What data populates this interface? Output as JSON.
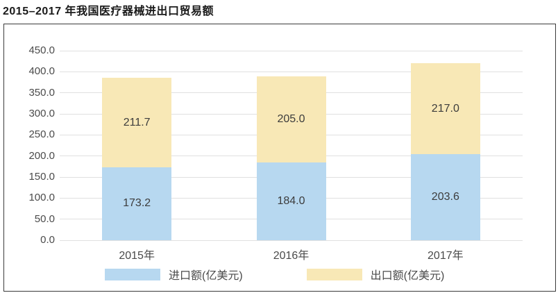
{
  "title": "2015–2017 年我国医疗器械进出口贸易额",
  "colors": {
    "import_fill": "#B7D8F0",
    "export_fill": "#F8E8B6",
    "gridline": "#E0E0E0",
    "axis_text": "#4A4A4A",
    "value_text": "#3C3C3C",
    "frame_border": "#3A3A3A",
    "background": "#FFFFFF"
  },
  "y_axis": {
    "tick_labels": [
      "450.0",
      "400.0",
      "350.0",
      "300.0",
      "250.0",
      "200.0",
      "150.0",
      "100.0",
      "50.0",
      "0.0"
    ]
  },
  "legend": {
    "items": [
      {
        "label": "进口额(亿美元)",
        "color": "#B7D8F0"
      },
      {
        "label": "出口额(亿美元)",
        "color": "#F8E8B6"
      }
    ]
  },
  "chart_data": {
    "type": "bar",
    "stacked": true,
    "title": "2015–2017 年我国医疗器械进出口贸易额",
    "categories": [
      "2015年",
      "2016年",
      "2017年"
    ],
    "series": [
      {
        "name": "进口额(亿美元)",
        "color": "#B7D8F0",
        "values": [
          173.2,
          184.0,
          203.6
        ]
      },
      {
        "name": "出口额(亿美元)",
        "color": "#F8E8B6",
        "values": [
          211.7,
          205.0,
          217.0
        ]
      }
    ],
    "xlabel": "",
    "ylabel": "",
    "ylim": [
      0,
      450
    ],
    "ytick_step": 50,
    "grid": true,
    "legend_position": "bottom",
    "value_labels_shown": true
  }
}
